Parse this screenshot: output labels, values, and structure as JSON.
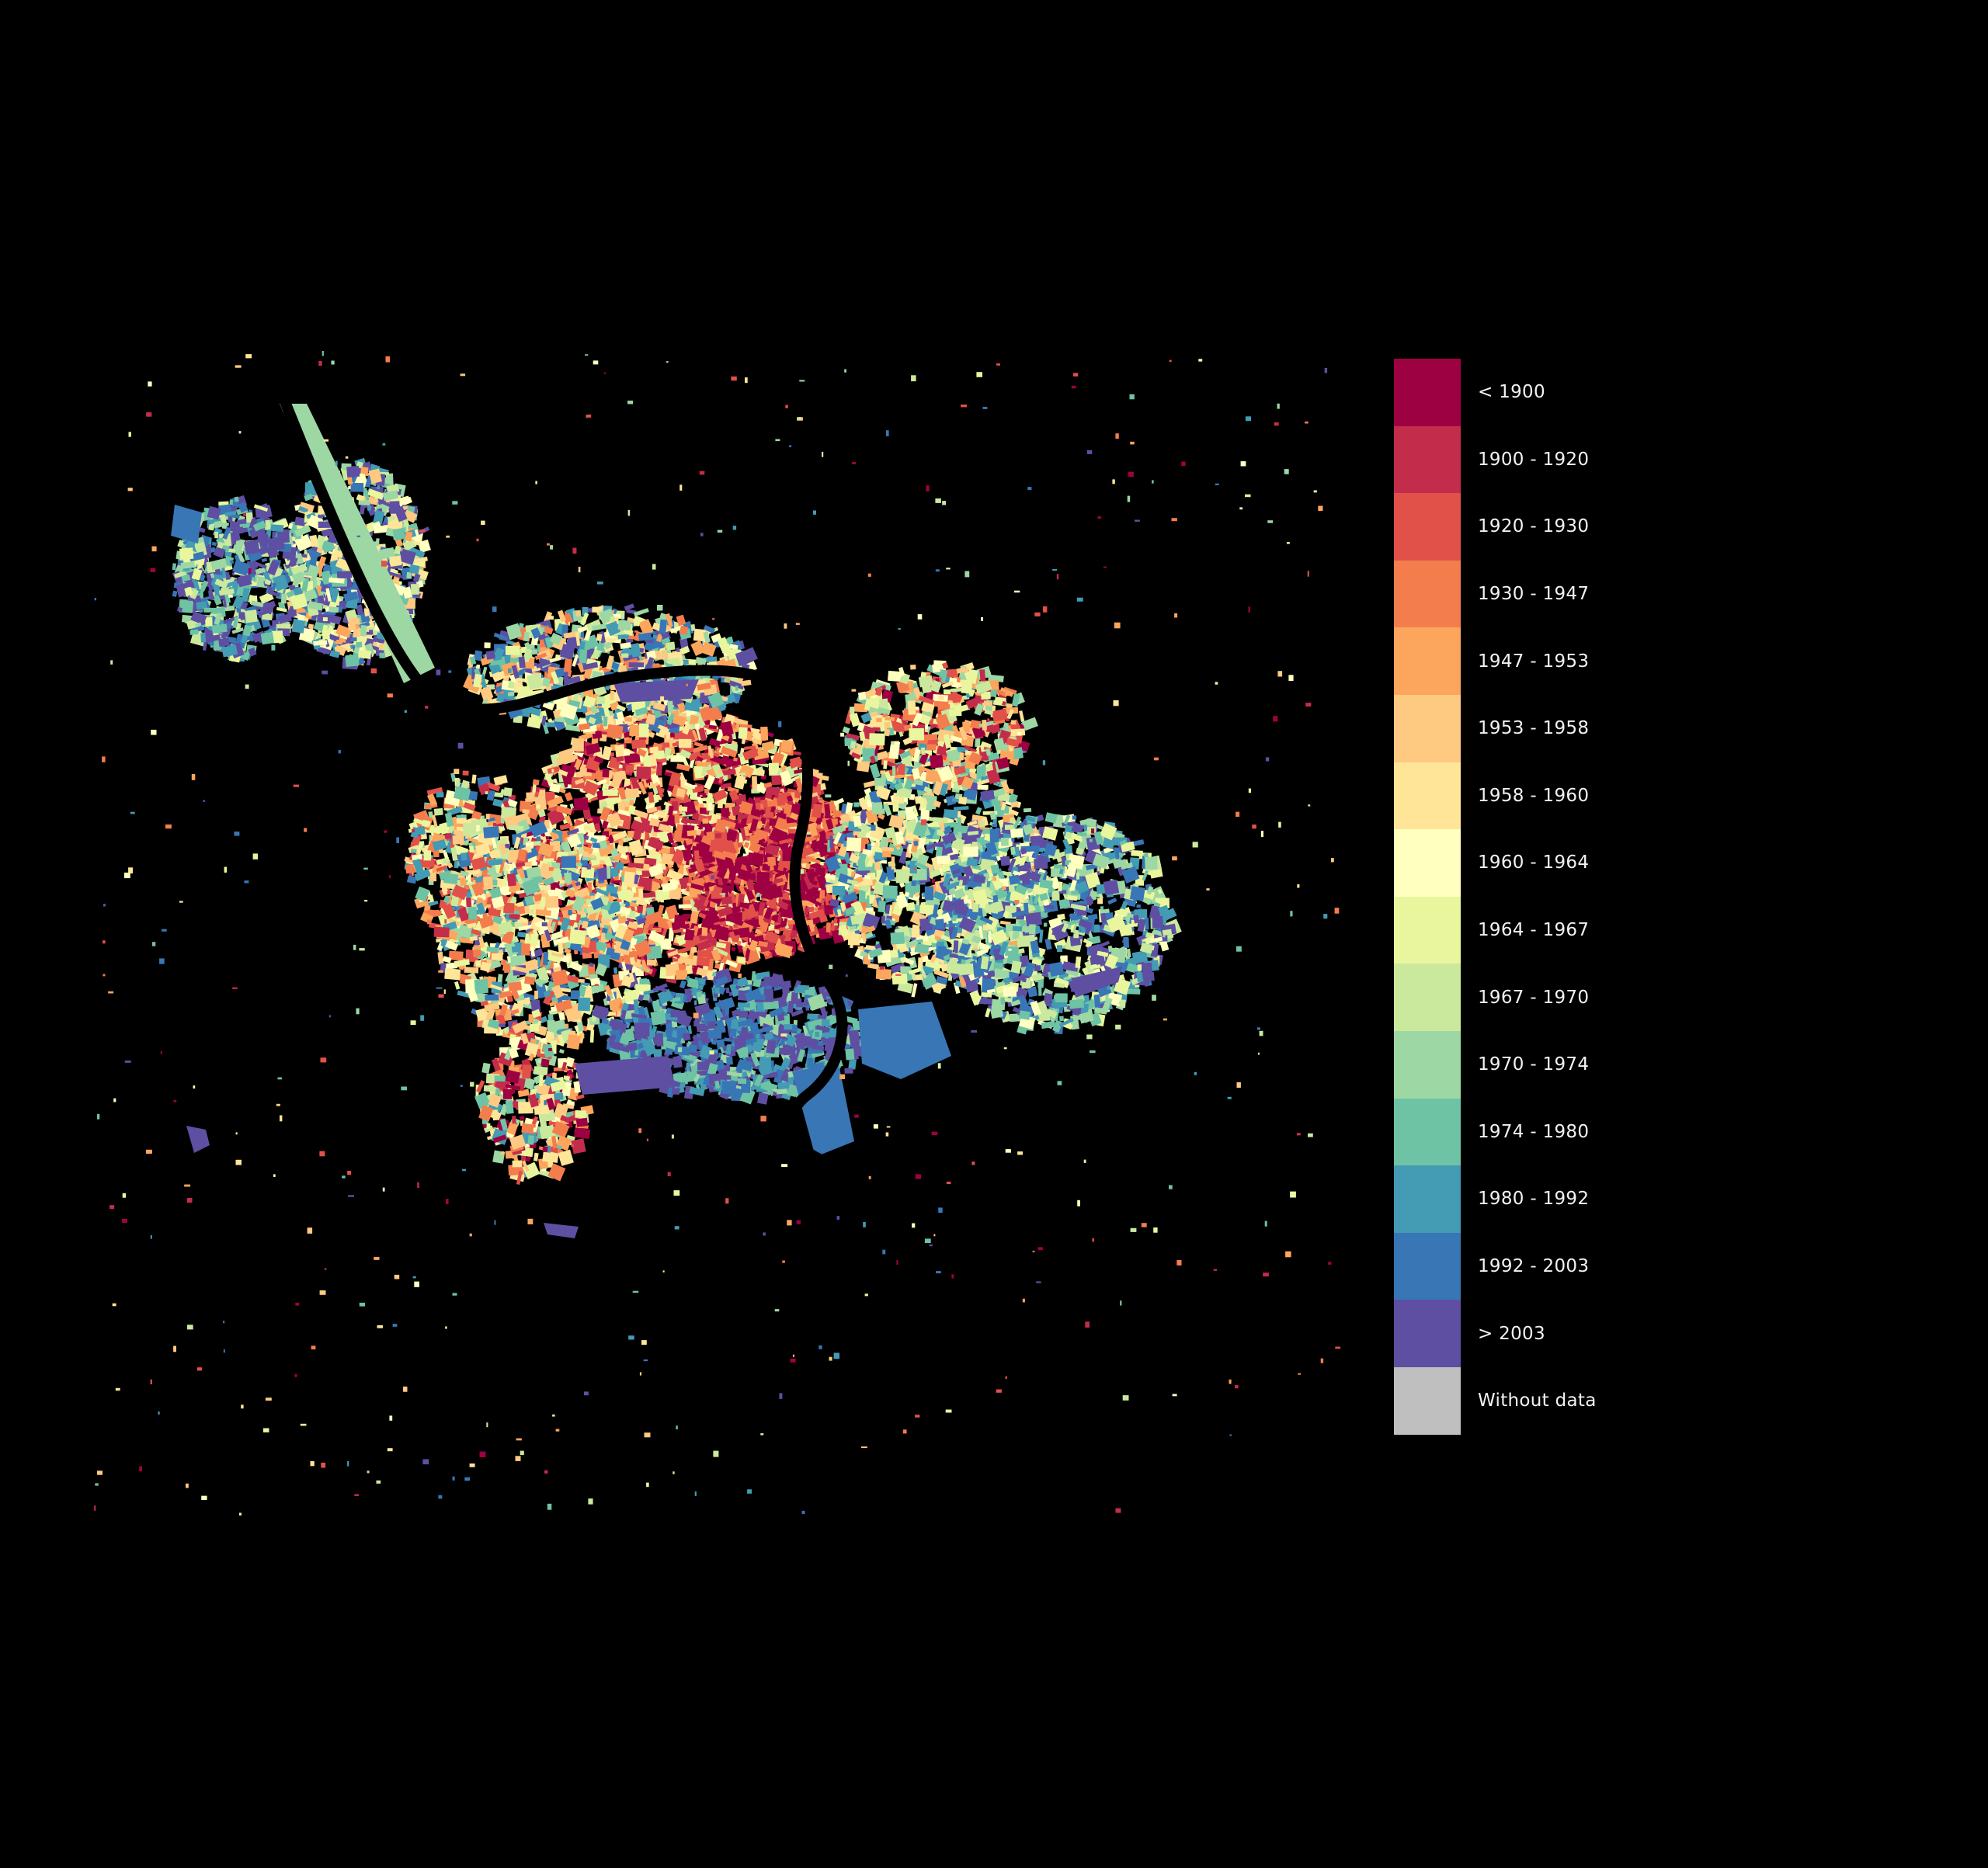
{
  "map": {
    "background_color": "#000000",
    "river_color": "#000000"
  },
  "legend": {
    "items": [
      {
        "label": "< 1900",
        "color": "#9e0142"
      },
      {
        "label": "1900 - 1920",
        "color": "#c42c4b"
      },
      {
        "label": "1920 - 1930",
        "color": "#e1514a"
      },
      {
        "label": "1930 - 1947",
        "color": "#f47d4d"
      },
      {
        "label": "1947 - 1953",
        "color": "#fca55d"
      },
      {
        "label": "1953 - 1958",
        "color": "#fec980"
      },
      {
        "label": "1958 - 1960",
        "color": "#fee597"
      },
      {
        "label": "1960 - 1964",
        "color": "#ffffbf"
      },
      {
        "label": "1964 - 1967",
        "color": "#eaf69d"
      },
      {
        "label": "1967 - 1970",
        "color": "#cbe99d"
      },
      {
        "label": "1970 - 1974",
        "color": "#9dd7a4"
      },
      {
        "label": "1974 - 1980",
        "color": "#6ec3a4"
      },
      {
        "label": "1980 - 1992",
        "color": "#439bb4"
      },
      {
        "label": "1992 - 2003",
        "color": "#3976b5"
      },
      {
        "label": "> 2003",
        "color": "#5e4fa2"
      },
      {
        "label": "Without data",
        "color": "#bfbfbf"
      }
    ]
  }
}
